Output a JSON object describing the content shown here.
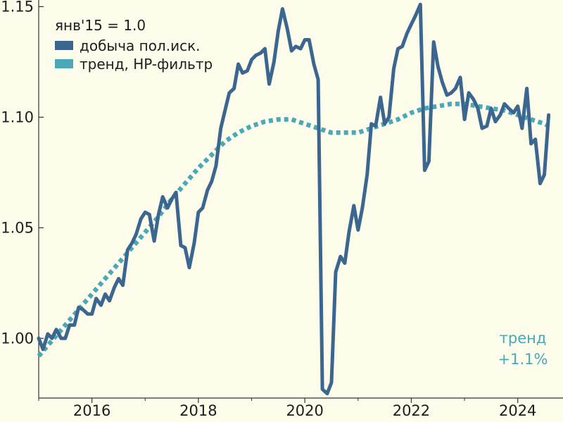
{
  "chart_data": {
    "type": "line",
    "title": "",
    "xlabel": "",
    "ylabel": "",
    "xlim": [
      2015.0,
      2024.85
    ],
    "ylim": [
      0.973,
      1.153
    ],
    "x_ticks": [
      2016,
      2018,
      2020,
      2022,
      2024
    ],
    "y_ticks": [
      1.0,
      1.05,
      1.1,
      1.15
    ],
    "x_tick_labels": [
      "2016",
      "2018",
      "2020",
      "2022",
      "2024"
    ],
    "y_tick_labels": [
      "1.00",
      "1.05",
      "1.10",
      "1.15"
    ],
    "grid": false,
    "legend": {
      "position": "top-left",
      "title": "янв'15 = 1.0"
    },
    "annotation": {
      "lines": [
        "тренд",
        "+1.1%"
      ],
      "color": "#4aa8b9",
      "position": "bottom-right"
    },
    "series": [
      {
        "name": "добыча пол.иск.",
        "color": "#3a6690",
        "style": "solid",
        "points": [
          [
            2015.0,
            1.0
          ],
          [
            2015.08,
            0.995
          ],
          [
            2015.17,
            1.002
          ],
          [
            2015.25,
            1.0
          ],
          [
            2015.33,
            1.004
          ],
          [
            2015.42,
            1.0
          ],
          [
            2015.5,
            1.0
          ],
          [
            2015.58,
            1.006
          ],
          [
            2015.67,
            1.006
          ],
          [
            2015.75,
            1.014
          ],
          [
            2015.83,
            1.013
          ],
          [
            2015.92,
            1.011
          ],
          [
            2016.0,
            1.011
          ],
          [
            2016.08,
            1.018
          ],
          [
            2016.17,
            1.015
          ],
          [
            2016.25,
            1.02
          ],
          [
            2016.33,
            1.017
          ],
          [
            2016.42,
            1.023
          ],
          [
            2016.5,
            1.027
          ],
          [
            2016.58,
            1.024
          ],
          [
            2016.67,
            1.04
          ],
          [
            2016.75,
            1.043
          ],
          [
            2016.83,
            1.047
          ],
          [
            2016.92,
            1.054
          ],
          [
            2017.0,
            1.057
          ],
          [
            2017.08,
            1.056
          ],
          [
            2017.17,
            1.044
          ],
          [
            2017.25,
            1.056
          ],
          [
            2017.33,
            1.064
          ],
          [
            2017.42,
            1.059
          ],
          [
            2017.5,
            1.063
          ],
          [
            2017.58,
            1.066
          ],
          [
            2017.67,
            1.042
          ],
          [
            2017.75,
            1.041
          ],
          [
            2017.83,
            1.032
          ],
          [
            2017.92,
            1.043
          ],
          [
            2018.0,
            1.057
          ],
          [
            2018.08,
            1.059
          ],
          [
            2018.17,
            1.067
          ],
          [
            2018.25,
            1.071
          ],
          [
            2018.33,
            1.078
          ],
          [
            2018.42,
            1.095
          ],
          [
            2018.5,
            1.103
          ],
          [
            2018.58,
            1.111
          ],
          [
            2018.67,
            1.113
          ],
          [
            2018.75,
            1.124
          ],
          [
            2018.83,
            1.12
          ],
          [
            2018.92,
            1.121
          ],
          [
            2019.0,
            1.126
          ],
          [
            2019.08,
            1.128
          ],
          [
            2019.17,
            1.129
          ],
          [
            2019.25,
            1.131
          ],
          [
            2019.33,
            1.115
          ],
          [
            2019.42,
            1.125
          ],
          [
            2019.5,
            1.139
          ],
          [
            2019.58,
            1.149
          ],
          [
            2019.67,
            1.14
          ],
          [
            2019.75,
            1.13
          ],
          [
            2019.83,
            1.132
          ],
          [
            2019.92,
            1.131
          ],
          [
            2020.0,
            1.135
          ],
          [
            2020.08,
            1.135
          ],
          [
            2020.17,
            1.124
          ],
          [
            2020.25,
            1.117
          ],
          [
            2020.33,
            0.977
          ],
          [
            2020.42,
            0.975
          ],
          [
            2020.5,
            0.98
          ],
          [
            2020.58,
            1.03
          ],
          [
            2020.67,
            1.037
          ],
          [
            2020.75,
            1.034
          ],
          [
            2020.83,
            1.048
          ],
          [
            2020.92,
            1.06
          ],
          [
            2021.0,
            1.049
          ],
          [
            2021.08,
            1.059
          ],
          [
            2021.17,
            1.074
          ],
          [
            2021.25,
            1.097
          ],
          [
            2021.33,
            1.096
          ],
          [
            2021.42,
            1.109
          ],
          [
            2021.5,
            1.097
          ],
          [
            2021.58,
            1.1
          ],
          [
            2021.67,
            1.122
          ],
          [
            2021.75,
            1.131
          ],
          [
            2021.83,
            1.132
          ],
          [
            2021.92,
            1.138
          ],
          [
            2022.0,
            1.142
          ],
          [
            2022.08,
            1.146
          ],
          [
            2022.17,
            1.151
          ],
          [
            2022.25,
            1.076
          ],
          [
            2022.33,
            1.08
          ],
          [
            2022.42,
            1.134
          ],
          [
            2022.5,
            1.123
          ],
          [
            2022.58,
            1.116
          ],
          [
            2022.67,
            1.11
          ],
          [
            2022.75,
            1.111
          ],
          [
            2022.83,
            1.113
          ],
          [
            2022.92,
            1.118
          ],
          [
            2023.0,
            1.099
          ],
          [
            2023.08,
            1.111
          ],
          [
            2023.17,
            1.108
          ],
          [
            2023.25,
            1.104
          ],
          [
            2023.33,
            1.095
          ],
          [
            2023.42,
            1.096
          ],
          [
            2023.5,
            1.104
          ],
          [
            2023.58,
            1.098
          ],
          [
            2023.67,
            1.101
          ],
          [
            2023.75,
            1.106
          ],
          [
            2023.83,
            1.104
          ],
          [
            2023.92,
            1.102
          ],
          [
            2024.0,
            1.105
          ],
          [
            2024.08,
            1.095
          ],
          [
            2024.17,
            1.113
          ],
          [
            2024.25,
            1.088
          ],
          [
            2024.33,
            1.09
          ],
          [
            2024.42,
            1.07
          ],
          [
            2024.5,
            1.074
          ],
          [
            2024.58,
            1.101
          ]
        ]
      },
      {
        "name": "тренд, HP-фильтр",
        "color": "#4aa8b9",
        "style": "dotted",
        "points": [
          [
            2015.0,
            0.992
          ],
          [
            2015.25,
            0.999
          ],
          [
            2015.5,
            1.006
          ],
          [
            2015.75,
            1.013
          ],
          [
            2016.0,
            1.02
          ],
          [
            2016.25,
            1.027
          ],
          [
            2016.5,
            1.034
          ],
          [
            2016.75,
            1.041
          ],
          [
            2017.0,
            1.048
          ],
          [
            2017.25,
            1.055
          ],
          [
            2017.5,
            1.063
          ],
          [
            2017.75,
            1.07
          ],
          [
            2018.0,
            1.077
          ],
          [
            2018.25,
            1.083
          ],
          [
            2018.5,
            1.089
          ],
          [
            2018.75,
            1.093
          ],
          [
            2019.0,
            1.096
          ],
          [
            2019.25,
            1.098
          ],
          [
            2019.5,
            1.099
          ],
          [
            2019.75,
            1.099
          ],
          [
            2020.0,
            1.097
          ],
          [
            2020.25,
            1.095
          ],
          [
            2020.5,
            1.093
          ],
          [
            2020.75,
            1.093
          ],
          [
            2021.0,
            1.093
          ],
          [
            2021.25,
            1.095
          ],
          [
            2021.5,
            1.097
          ],
          [
            2021.75,
            1.099
          ],
          [
            2022.0,
            1.102
          ],
          [
            2022.25,
            1.104
          ],
          [
            2022.5,
            1.105
          ],
          [
            2022.75,
            1.106
          ],
          [
            2023.0,
            1.106
          ],
          [
            2023.25,
            1.105
          ],
          [
            2023.5,
            1.104
          ],
          [
            2023.75,
            1.103
          ],
          [
            2024.0,
            1.101
          ],
          [
            2024.25,
            1.099
          ],
          [
            2024.5,
            1.097
          ],
          [
            2024.58,
            1.096
          ]
        ]
      }
    ]
  }
}
